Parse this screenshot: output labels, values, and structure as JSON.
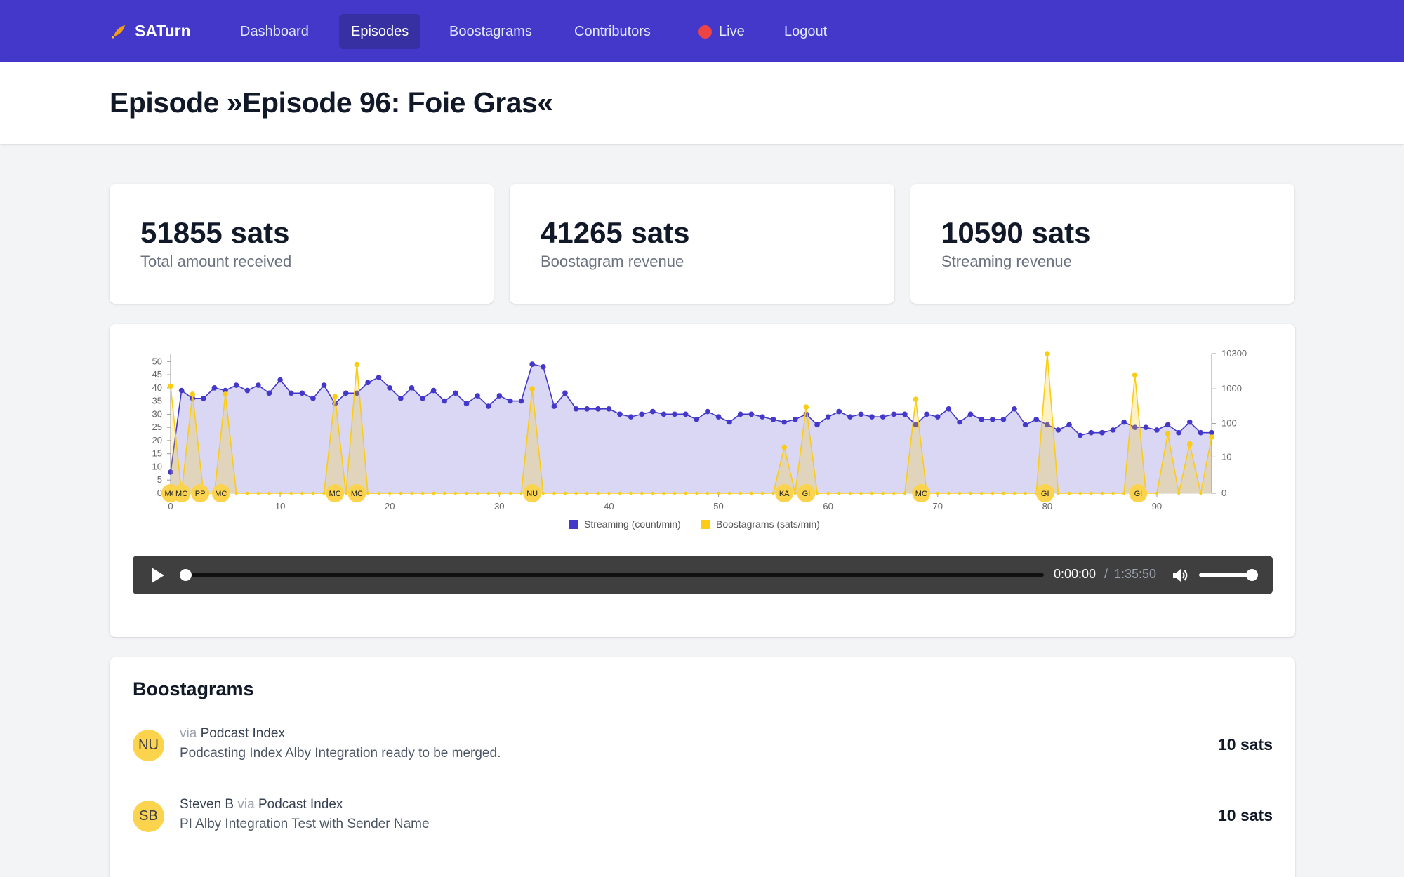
{
  "nav": {
    "brand": "SATurn",
    "items": [
      {
        "label": "Dashboard",
        "active": false
      },
      {
        "label": "Episodes",
        "active": true
      },
      {
        "label": "Boostagrams",
        "active": false
      },
      {
        "label": "Contributors",
        "active": false
      },
      {
        "label": "Live",
        "active": false
      },
      {
        "label": "Logout",
        "active": false
      }
    ]
  },
  "header": {
    "title": "Episode »Episode 96: Foie Gras«"
  },
  "stats": [
    {
      "value": "51855 sats",
      "label": "Total amount received"
    },
    {
      "value": "41265 sats",
      "label": "Boostagram revenue"
    },
    {
      "value": "10590 sats",
      "label": "Streaming revenue"
    }
  ],
  "colors": {
    "nav_bg": "#4338ca",
    "streaming": "#4338ca",
    "boostagrams": "#facc15",
    "avatar": "#fcd34d"
  },
  "chart_data": {
    "type": "line",
    "x_ticks": [
      "0",
      "10",
      "20",
      "30",
      "40",
      "50",
      "60",
      "70",
      "80",
      "90"
    ],
    "xlim": [
      0,
      95
    ],
    "y_left_ticks": [
      "0",
      "5",
      "10",
      "15",
      "20",
      "25",
      "30",
      "35",
      "40",
      "45",
      "50"
    ],
    "y_left_lim": [
      0,
      53
    ],
    "y_right_ticks": [
      "0",
      "10",
      "100",
      "1000",
      "10300"
    ],
    "y_right_scale": "log",
    "legend_position": "bottom-center",
    "series": [
      {
        "name": "Streaming (count/min)",
        "axis": "left",
        "x": [
          0,
          1,
          2,
          3,
          4,
          5,
          6,
          7,
          8,
          9,
          10,
          11,
          12,
          13,
          14,
          15,
          16,
          17,
          18,
          19,
          20,
          21,
          22,
          23,
          24,
          25,
          26,
          27,
          28,
          29,
          30,
          31,
          32,
          33,
          34,
          35,
          36,
          37,
          38,
          39,
          40,
          41,
          42,
          43,
          44,
          45,
          46,
          47,
          48,
          49,
          50,
          51,
          52,
          53,
          54,
          55,
          56,
          57,
          58,
          59,
          60,
          61,
          62,
          63,
          64,
          65,
          66,
          67,
          68,
          69,
          70,
          71,
          72,
          73,
          74,
          75,
          76,
          77,
          78,
          79,
          80,
          81,
          82,
          83,
          84,
          85,
          86,
          87,
          88,
          89,
          90,
          91,
          92,
          93,
          94,
          95
        ],
        "values": [
          8,
          39,
          36,
          36,
          40,
          39,
          41,
          39,
          41,
          38,
          43,
          38,
          38,
          36,
          41,
          34,
          38,
          38,
          42,
          44,
          40,
          36,
          40,
          36,
          39,
          35,
          38,
          34,
          37,
          33,
          37,
          35,
          35,
          49,
          48,
          33,
          38,
          32,
          32,
          32,
          32,
          30,
          29,
          30,
          31,
          30,
          30,
          30,
          28,
          31,
          29,
          27,
          30,
          30,
          29,
          28,
          27,
          28,
          30,
          26,
          29,
          31,
          29,
          30,
          29,
          29,
          30,
          30,
          26,
          30,
          29,
          32,
          27,
          30,
          28,
          28,
          28,
          32,
          26,
          28,
          26,
          24,
          26,
          22,
          23,
          23,
          24,
          27,
          25,
          25,
          24,
          26,
          23,
          27,
          23,
          23
        ]
      },
      {
        "name": "Boostagrams (sats/min)",
        "axis": "right",
        "x": [
          0,
          2,
          5,
          15,
          17,
          33,
          56,
          58,
          68,
          80,
          88,
          91,
          93,
          95
        ],
        "values": [
          1200,
          700,
          700,
          600,
          5000,
          1000,
          20,
          300,
          500,
          10300,
          2500,
          50,
          25,
          40
        ]
      }
    ],
    "boost_markers": [
      {
        "label": "MC",
        "x": 0
      },
      {
        "label": "MC",
        "x": 1
      },
      {
        "label": "PP",
        "x": 2.7
      },
      {
        "label": "MC",
        "x": 4.6
      },
      {
        "label": "MC",
        "x": 15
      },
      {
        "label": "MC",
        "x": 17
      },
      {
        "label": "NU",
        "x": 33
      },
      {
        "label": "KA",
        "x": 56
      },
      {
        "label": "GI",
        "x": 58
      },
      {
        "label": "MC",
        "x": 68.5
      },
      {
        "label": "GI",
        "x": 79.8
      },
      {
        "label": "GI",
        "x": 88.3
      }
    ]
  },
  "player": {
    "current_time": "0:00:00",
    "separator": "/",
    "total_time": "1:35:50",
    "progress": 0,
    "volume": 1.0
  },
  "boostagrams": {
    "title": "Boostagrams",
    "via_word": "via",
    "items": [
      {
        "initials": "NU",
        "sender": "",
        "app": "Podcast Index",
        "message": "Podcasting Index Alby Integration ready to be merged.",
        "amount": "10 sats"
      },
      {
        "initials": "SB",
        "sender": "Steven B",
        "app": "Podcast Index",
        "message": "PI Alby Integration Test with Sender Name",
        "amount": "10 sats"
      }
    ]
  }
}
